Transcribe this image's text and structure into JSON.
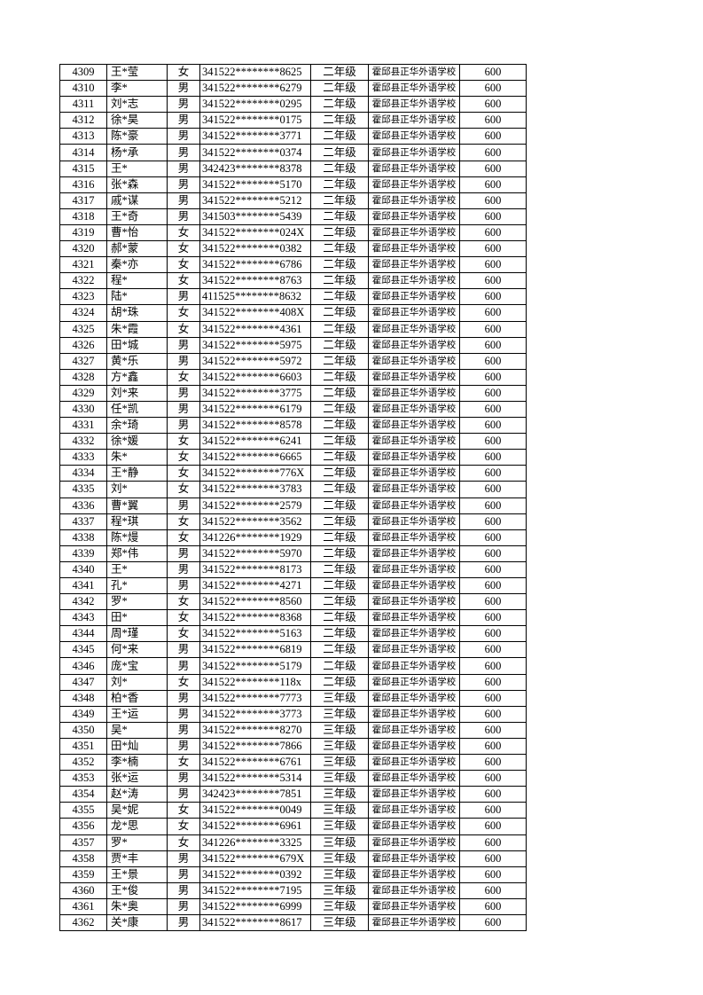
{
  "table": {
    "rows": [
      [
        4309,
        "王*莹",
        "女",
        "341522********8625",
        "二年级",
        "霍邱县正华外语学校",
        600
      ],
      [
        4310,
        "李*",
        "男",
        "341522********6279",
        "二年级",
        "霍邱县正华外语学校",
        600
      ],
      [
        4311,
        "刘*志",
        "男",
        "341522********0295",
        "二年级",
        "霍邱县正华外语学校",
        600
      ],
      [
        4312,
        "徐*昊",
        "男",
        "341522********0175",
        "二年级",
        "霍邱县正华外语学校",
        600
      ],
      [
        4313,
        "陈*豪",
        "男",
        "341522********3771",
        "二年级",
        "霍邱县正华外语学校",
        600
      ],
      [
        4314,
        "杨*承",
        "男",
        "341522********0374",
        "二年级",
        "霍邱县正华外语学校",
        600
      ],
      [
        4315,
        "王*",
        "男",
        "342423********8378",
        "二年级",
        "霍邱县正华外语学校",
        600
      ],
      [
        4316,
        "张*森",
        "男",
        "341522********5170",
        "二年级",
        "霍邱县正华外语学校",
        600
      ],
      [
        4317,
        "戚*谋",
        "男",
        "341522********5212",
        "二年级",
        "霍邱县正华外语学校",
        600
      ],
      [
        4318,
        "王*奇",
        "男",
        "341503********5439",
        "二年级",
        "霍邱县正华外语学校",
        600
      ],
      [
        4319,
        "曹*怡",
        "女",
        "341522********024X",
        "二年级",
        "霍邱县正华外语学校",
        600
      ],
      [
        4320,
        "郝*蒙",
        "女",
        "341522********0382",
        "二年级",
        "霍邱县正华外语学校",
        600
      ],
      [
        4321,
        "秦*亦",
        "女",
        "341522********6786",
        "二年级",
        "霍邱县正华外语学校",
        600
      ],
      [
        4322,
        "程*",
        "女",
        "341522********8763",
        "二年级",
        "霍邱县正华外语学校",
        600
      ],
      [
        4323,
        "陆*",
        "男",
        "411525********8632",
        "二年级",
        "霍邱县正华外语学校",
        600
      ],
      [
        4324,
        "胡*珠",
        "女",
        "341522********408X",
        "二年级",
        "霍邱县正华外语学校",
        600
      ],
      [
        4325,
        "朱*霞",
        "女",
        "341522********4361",
        "二年级",
        "霍邱县正华外语学校",
        600
      ],
      [
        4326,
        "田*城",
        "男",
        "341522********5975",
        "二年级",
        "霍邱县正华外语学校",
        600
      ],
      [
        4327,
        "黄*乐",
        "男",
        "341522********5972",
        "二年级",
        "霍邱县正华外语学校",
        600
      ],
      [
        4328,
        "方*鑫",
        "女",
        "341522********6603",
        "二年级",
        "霍邱县正华外语学校",
        600
      ],
      [
        4329,
        "刘*来",
        "男",
        "341522********3775",
        "二年级",
        "霍邱县正华外语学校",
        600
      ],
      [
        4330,
        "任*凯",
        "男",
        "341522********6179",
        "二年级",
        "霍邱县正华外语学校",
        600
      ],
      [
        4331,
        "余*琦",
        "男",
        "341522********8578",
        "二年级",
        "霍邱县正华外语学校",
        600
      ],
      [
        4332,
        "徐*媛",
        "女",
        "341522********6241",
        "二年级",
        "霍邱县正华外语学校",
        600
      ],
      [
        4333,
        "朱*",
        "女",
        "341522********6665",
        "二年级",
        "霍邱县正华外语学校",
        600
      ],
      [
        4334,
        "王*静",
        "女",
        "341522********776X",
        "二年级",
        "霍邱县正华外语学校",
        600
      ],
      [
        4335,
        "刘*",
        "女",
        "341522********3783",
        "二年级",
        "霍邱县正华外语学校",
        600
      ],
      [
        4336,
        "曹*翼",
        "男",
        "341522********2579",
        "二年级",
        "霍邱县正华外语学校",
        600
      ],
      [
        4337,
        "程*琪",
        "女",
        "341522********3562",
        "二年级",
        "霍邱县正华外语学校",
        600
      ],
      [
        4338,
        "陈*熳",
        "女",
        "341226********1929",
        "二年级",
        "霍邱县正华外语学校",
        600
      ],
      [
        4339,
        "郑*伟",
        "男",
        "341522********5970",
        "二年级",
        "霍邱县正华外语学校",
        600
      ],
      [
        4340,
        "王*",
        "男",
        "341522********8173",
        "二年级",
        "霍邱县正华外语学校",
        600
      ],
      [
        4341,
        "孔*",
        "男",
        "341522********4271",
        "二年级",
        "霍邱县正华外语学校",
        600
      ],
      [
        4342,
        "罗*",
        "女",
        "341522********8560",
        "二年级",
        "霍邱县正华外语学校",
        600
      ],
      [
        4343,
        "田*",
        "女",
        "341522********8368",
        "二年级",
        "霍邱县正华外语学校",
        600
      ],
      [
        4344,
        "周*瑾",
        "女",
        "341522********5163",
        "二年级",
        "霍邱县正华外语学校",
        600
      ],
      [
        4345,
        "何*来",
        "男",
        "341522********6819",
        "二年级",
        "霍邱县正华外语学校",
        600
      ],
      [
        4346,
        "庞*宝",
        "男",
        "341522********5179",
        "二年级",
        "霍邱县正华外语学校",
        600
      ],
      [
        4347,
        "刘*",
        "女",
        "341522********118x",
        "二年级",
        "霍邱县正华外语学校",
        600
      ],
      [
        4348,
        "柏*香",
        "男",
        "341522********7773",
        "三年级",
        "霍邱县正华外语学校",
        600
      ],
      [
        4349,
        "王*运",
        "男",
        "341522********3773",
        "三年级",
        "霍邱县正华外语学校",
        600
      ],
      [
        4350,
        "吴*",
        "男",
        "341522********8270",
        "三年级",
        "霍邱县正华外语学校",
        600
      ],
      [
        4351,
        "田*灿",
        "男",
        "341522********7866",
        "三年级",
        "霍邱县正华外语学校",
        600
      ],
      [
        4352,
        "李*楠",
        "女",
        "341522********6761",
        "三年级",
        "霍邱县正华外语学校",
        600
      ],
      [
        4353,
        "张*运",
        "男",
        "341522********5314",
        "三年级",
        "霍邱县正华外语学校",
        600
      ],
      [
        4354,
        "赵*涛",
        "男",
        "342423********7851",
        "三年级",
        "霍邱县正华外语学校",
        600
      ],
      [
        4355,
        "吴*妮",
        "女",
        "341522********0049",
        "三年级",
        "霍邱县正华外语学校",
        600
      ],
      [
        4356,
        "龙*思",
        "女",
        "341522********6961",
        "三年级",
        "霍邱县正华外语学校",
        600
      ],
      [
        4357,
        "罗*",
        "女",
        "341226********3325",
        "三年级",
        "霍邱县正华外语学校",
        600
      ],
      [
        4358,
        "贾*丰",
        "男",
        "341522********679X",
        "三年级",
        "霍邱县正华外语学校",
        600
      ],
      [
        4359,
        "王*景",
        "男",
        "341522********0392",
        "三年级",
        "霍邱县正华外语学校",
        600
      ],
      [
        4360,
        "王*俊",
        "男",
        "341522********7195",
        "三年级",
        "霍邱县正华外语学校",
        600
      ],
      [
        4361,
        "朱*奥",
        "男",
        "341522********6999",
        "三年级",
        "霍邱县正华外语学校",
        600
      ],
      [
        4362,
        "关*康",
        "男",
        "341522********8617",
        "三年级",
        "霍邱县正华外语学校",
        600
      ]
    ]
  }
}
